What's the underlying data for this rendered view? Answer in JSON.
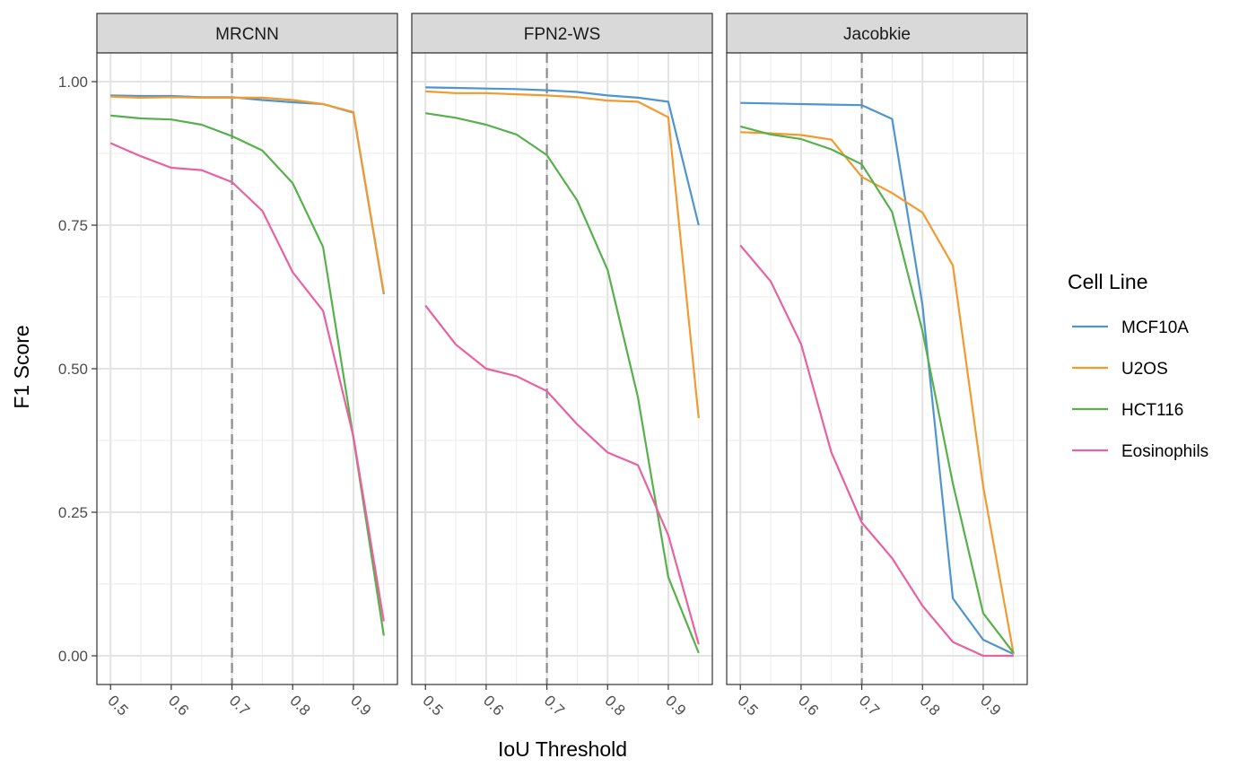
{
  "chart_data": {
    "type": "line",
    "xlabel": "IoU Threshold",
    "ylabel": "F1 Score",
    "xlim": [
      0.5,
      0.95
    ],
    "ylim": [
      0,
      1
    ],
    "x_ticks": [
      "0.5",
      "0.6",
      "0.7",
      "0.8",
      "0.9"
    ],
    "y_ticks": [
      "0.00",
      "0.25",
      "0.50",
      "0.75",
      "1.00"
    ],
    "reference_line_x": 0.7,
    "grid": true,
    "legend": {
      "title": "Cell Line",
      "placement": "right",
      "entries": [
        "MCF10A",
        "U2OS",
        "HCT116",
        "Eosinophils"
      ]
    },
    "colors": {
      "MCF10A": "#4E95D0",
      "U2OS": "#F39A2E",
      "HCT116": "#56B14C",
      "Eosinophils": "#E7629E"
    },
    "x": [
      0.5,
      0.55,
      0.6,
      0.65,
      0.7,
      0.75,
      0.8,
      0.85,
      0.9,
      0.95
    ],
    "panels": [
      {
        "name": "MRCNN",
        "series": [
          {
            "name": "MCF10A",
            "values": [
              0.976,
              0.975,
              0.975,
              0.973,
              0.973,
              0.968,
              0.964,
              0.961,
              0.946,
              0.63
            ]
          },
          {
            "name": "U2OS",
            "values": [
              0.974,
              0.972,
              0.973,
              0.972,
              0.972,
              0.972,
              0.968,
              0.961,
              0.947,
              0.632
            ]
          },
          {
            "name": "HCT116",
            "values": [
              0.941,
              0.936,
              0.934,
              0.925,
              0.905,
              0.88,
              0.823,
              0.712,
              0.38,
              0.035
            ]
          },
          {
            "name": "Eosinophils",
            "values": [
              0.893,
              0.87,
              0.85,
              0.846,
              0.825,
              0.775,
              0.668,
              0.601,
              0.382,
              0.06
            ]
          }
        ]
      },
      {
        "name": "FPN2-WS",
        "series": [
          {
            "name": "MCF10A",
            "values": [
              0.99,
              0.989,
              0.988,
              0.987,
              0.985,
              0.982,
              0.976,
              0.972,
              0.965,
              0.75
            ]
          },
          {
            "name": "U2OS",
            "values": [
              0.983,
              0.98,
              0.98,
              0.978,
              0.976,
              0.973,
              0.967,
              0.965,
              0.938,
              0.414
            ]
          },
          {
            "name": "HCT116",
            "values": [
              0.945,
              0.937,
              0.925,
              0.908,
              0.872,
              0.793,
              0.672,
              0.45,
              0.137,
              0.005
            ]
          },
          {
            "name": "Eosinophils",
            "values": [
              0.61,
              0.542,
              0.5,
              0.487,
              0.461,
              0.403,
              0.354,
              0.332,
              0.21,
              0.02
            ]
          }
        ]
      },
      {
        "name": "Jacobkie",
        "series": [
          {
            "name": "MCF10A",
            "values": [
              0.963,
              0.962,
              0.961,
              0.96,
              0.959,
              0.935,
              0.61,
              0.1,
              0.028,
              0.003
            ]
          },
          {
            "name": "U2OS",
            "values": [
              0.912,
              0.91,
              0.907,
              0.899,
              0.834,
              0.806,
              0.772,
              0.68,
              0.295,
              0.003
            ]
          },
          {
            "name": "HCT116",
            "values": [
              0.922,
              0.908,
              0.9,
              0.882,
              0.856,
              0.773,
              0.565,
              0.3,
              0.074,
              0.005
            ]
          },
          {
            "name": "Eosinophils",
            "values": [
              0.715,
              0.652,
              0.543,
              0.354,
              0.232,
              0.17,
              0.087,
              0.024,
              0.0,
              0.0
            ]
          }
        ]
      }
    ]
  }
}
